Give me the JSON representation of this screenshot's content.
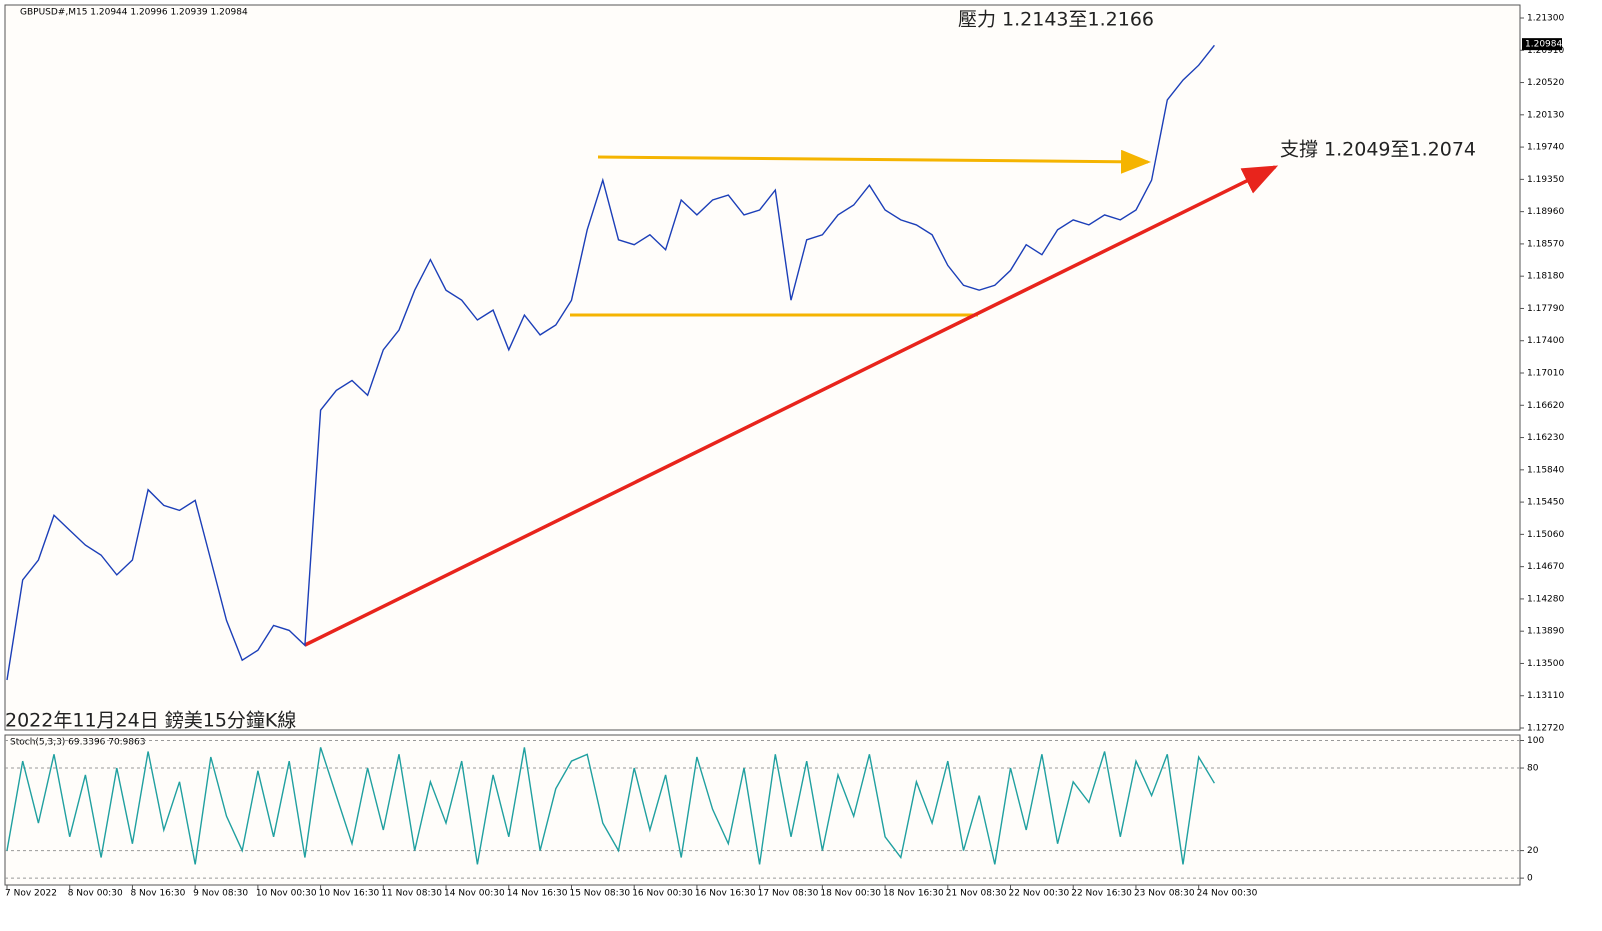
{
  "chart_data": [
    {
      "type": "line",
      "title": "GBPUSD#,M15  1.20944 1.20996 1.20939 1.20984",
      "annotations": [
        "壓力 1.2143至1.2166",
        "支撐 1.2049至1.2074",
        "2022年11月24日 鎊美15分鐘K線"
      ],
      "categories": [
        "7 Nov 2022",
        null,
        null,
        null,
        "8 Nov 00:30",
        null,
        null,
        null,
        "8 Nov 16:30",
        null,
        null,
        null,
        "9 Nov 08:30",
        null,
        null,
        null,
        "10 Nov 00:30",
        null,
        null,
        null,
        "10 Nov 16:30",
        null,
        null,
        null,
        "11 Nov 08:30",
        null,
        null,
        null,
        "14 Nov 00:30",
        null,
        null,
        null,
        "14 Nov 16:30",
        null,
        null,
        null,
        "15 Nov 08:30",
        null,
        null,
        null,
        "16 Nov 00:30",
        null,
        null,
        null,
        "16 Nov 16:30",
        null,
        null,
        null,
        "17 Nov 08:30",
        null,
        null,
        null,
        "18 Nov 00:30",
        null,
        null,
        null,
        "18 Nov 16:30",
        null,
        null,
        null,
        "21 Nov 08:30",
        null,
        null,
        null,
        "22 Nov 00:30",
        null,
        null,
        null,
        "22 Nov 16:30",
        null,
        null,
        null,
        "23 Nov 08:30",
        null,
        null,
        null,
        "24 Nov 00:30",
        null
      ],
      "series": [
        {
          "name": "GBPUSD#",
          "color": "#1c3fb8",
          "values": [
            1.133,
            1.1451,
            1.1475,
            1.1529,
            1.1511,
            1.1493,
            1.1481,
            1.1457,
            1.1475,
            1.156,
            1.1541,
            1.1535,
            1.1547,
            1.1475,
            1.1402,
            1.1354,
            1.1366,
            1.1396,
            1.139,
            1.1372,
            1.1656,
            1.168,
            1.1692,
            1.1674,
            1.1729,
            1.1753,
            1.1801,
            1.1838,
            1.1801,
            1.1789,
            1.1765,
            1.1777,
            1.1729,
            1.1771,
            1.1747,
            1.1759,
            1.1789,
            1.1874,
            1.1934,
            1.1862,
            1.1856,
            1.1868,
            1.185,
            1.191,
            1.1892,
            1.191,
            1.1916,
            1.1892,
            1.1898,
            1.1922,
            1.1789,
            1.1862,
            1.1868,
            1.1892,
            1.1904,
            1.1928,
            1.1898,
            1.1886,
            1.188,
            1.1868,
            1.1831,
            1.1807,
            1.1801,
            1.1807,
            1.1825,
            1.1856,
            1.1844,
            1.1874,
            1.1886,
            1.188,
            1.1892,
            1.1886,
            1.1898,
            1.1934,
            1.2031,
            1.2055,
            1.2073,
            1.2097
          ]
        }
      ],
      "current_price": 1.20984,
      "ylim": [
        1.12696,
        1.21457
      ],
      "yticks": [
        {
          "value": 1.213,
          "label": "1.21300"
        },
        {
          "value": 1.2091,
          "label": "1.20910"
        },
        {
          "value": 1.2052,
          "label": "1.20520"
        },
        {
          "value": 1.2013,
          "label": "1.20130"
        },
        {
          "value": 1.1974,
          "label": "1.19740"
        },
        {
          "value": 1.1935,
          "label": "1.19350"
        },
        {
          "value": 1.1896,
          "label": "1.18960"
        },
        {
          "value": 1.1857,
          "label": "1.18570"
        },
        {
          "value": 1.1818,
          "label": "1.18180"
        },
        {
          "value": 1.1779,
          "label": "1.17790"
        },
        {
          "value": 1.174,
          "label": "1.17400"
        },
        {
          "value": 1.1701,
          "label": "1.17010"
        },
        {
          "value": 1.1662,
          "label": "1.16620"
        },
        {
          "value": 1.1623,
          "label": "1.16230"
        },
        {
          "value": 1.1584,
          "label": "1.15840"
        },
        {
          "value": 1.1545,
          "label": "1.15450"
        },
        {
          "value": 1.1506,
          "label": "1.15060"
        },
        {
          "value": 1.1467,
          "label": "1.14670"
        },
        {
          "value": 1.1428,
          "label": "1.14280"
        },
        {
          "value": 1.1389,
          "label": "1.13890"
        },
        {
          "value": 1.135,
          "label": "1.13500"
        },
        {
          "value": 1.1311,
          "label": "1.13110"
        },
        {
          "value": 1.1272,
          "label": "1.12720"
        }
      ]
    },
    {
      "type": "line",
      "title": "Stoch(5,3,3) 69.3396 70.9863",
      "series": [
        {
          "name": "Stoch",
          "color": "#20a0a0",
          "values": [
            20,
            85,
            40,
            90,
            30,
            75,
            15,
            80,
            25,
            92,
            35,
            70,
            10,
            88,
            45,
            20,
            78,
            30,
            85,
            15,
            95,
            60,
            25,
            80,
            35,
            90,
            20,
            70,
            40,
            85,
            10,
            75,
            30,
            95,
            20,
            65,
            85,
            90,
            40,
            20,
            80,
            35,
            75,
            15,
            88,
            50,
            25,
            80,
            10,
            90,
            30,
            85,
            20,
            75,
            45,
            90,
            30,
            15,
            70,
            40,
            85,
            20,
            60,
            10,
            80,
            35,
            90,
            25,
            70,
            55,
            92,
            30,
            85,
            60,
            90,
            10,
            88,
            69
          ]
        }
      ],
      "ylim": [
        -5,
        104
      ],
      "yticks": [
        100,
        80,
        20,
        0
      ],
      "grid": true
    }
  ]
}
